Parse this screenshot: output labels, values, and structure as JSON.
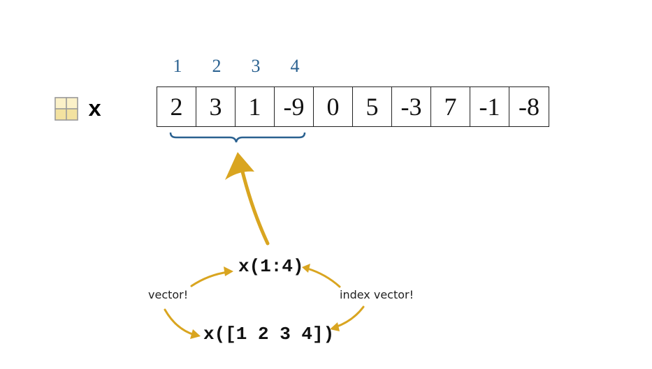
{
  "variable": {
    "name": "x",
    "icon": "variable-grid-icon"
  },
  "index_labels": [
    "1",
    "2",
    "3",
    "4"
  ],
  "array_values": [
    "2",
    "3",
    "1",
    "-9",
    "0",
    "5",
    "-3",
    "7",
    "-1",
    "-8"
  ],
  "code": {
    "range_expr": "x(1:4)",
    "list_expr": "x([1 2 3 4])"
  },
  "annotations": {
    "left_note": "vector!",
    "right_note": "index vector!"
  },
  "colors": {
    "index": "#2a6190",
    "brace": "#2a6190",
    "arrow": "#d9a520"
  }
}
